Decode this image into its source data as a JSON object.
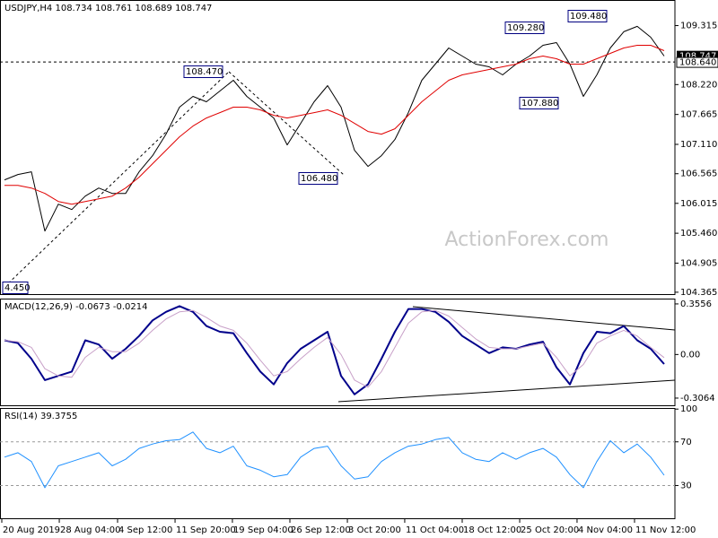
{
  "chart_data": [
    {
      "type": "line",
      "title": "USDJPY,H4  108.734 108.761 108.689 108.747",
      "ylim": [
        104.33,
        109.79
      ],
      "yticks": [
        109.315,
        {
          "value": 108.22,
          "label": "108.220"
        },
        107.665,
        {
          "value": 107.11,
          "label": "107.110"
        },
        106.565,
        106.015,
        {
          "value": 105.46,
          "label": "105.460"
        },
        104.905,
        104.365
      ],
      "xlim": [
        -0.333,
        49.8
      ],
      "xticks": [
        {
          "value": -0.2,
          "label": "20 Aug 2019"
        },
        {
          "value": 4.07,
          "label": "28 Aug 04:00"
        },
        {
          "value": 8.4,
          "label": "4 Sep 12:00"
        },
        {
          "value": 12.67,
          "label": "11 Sep 20:00"
        },
        {
          "value": 16.93,
          "label": "19 Sep 04:00"
        },
        {
          "value": 21.2,
          "label": "26 Sep 12:00"
        },
        {
          "value": 25.47,
          "label": "3 Oct 20:00"
        },
        {
          "value": 29.73,
          "label": "11 Oct 04:00"
        },
        {
          "value": 34,
          "label": "18 Oct 12:00"
        },
        {
          "value": 38.27,
          "label": "25 Oct 20:00"
        },
        {
          "value": 42.53,
          "label": "4 Nov 04:00"
        },
        {
          "value": 46.8,
          "label": "11 Nov 12:00"
        }
      ],
      "series": [
        {
          "name": "USDJPY",
          "color": "#000000",
          "width": 1,
          "values": [
            106.45,
            106.55,
            106.6,
            105.5,
            106.0,
            105.9,
            106.15,
            106.3,
            106.2,
            106.2,
            106.6,
            106.9,
            107.3,
            107.8,
            108.0,
            107.9,
            108.1,
            108.3,
            108.0,
            107.8,
            107.6,
            107.1,
            107.5,
            107.9,
            108.2,
            107.8,
            107.0,
            106.7,
            106.9,
            107.2,
            107.7,
            108.3,
            108.6,
            108.9,
            108.75,
            108.6,
            108.55,
            108.4,
            108.6,
            108.75,
            108.95,
            109.0,
            108.6,
            108.0,
            108.4,
            108.9,
            109.2,
            109.3,
            109.1,
            108.75
          ]
        },
        {
          "name": "MA",
          "color": "#e00000",
          "width": 1,
          "values": [
            106.35,
            106.35,
            106.3,
            106.2,
            106.05,
            106.0,
            106.05,
            106.1,
            106.15,
            106.3,
            106.5,
            106.75,
            107.0,
            107.25,
            107.45,
            107.6,
            107.7,
            107.8,
            107.8,
            107.75,
            107.65,
            107.6,
            107.65,
            107.7,
            107.75,
            107.65,
            107.5,
            107.35,
            107.3,
            107.4,
            107.65,
            107.9,
            108.1,
            108.3,
            108.4,
            108.45,
            108.5,
            108.55,
            108.6,
            108.7,
            108.75,
            108.7,
            108.6,
            108.6,
            108.7,
            108.8,
            108.9,
            108.95,
            108.95,
            108.85
          ]
        }
      ],
      "annotations": [
        "108.470",
        "106.480",
        "4.450",
        "109.280",
        "107.880",
        "109.480"
      ],
      "level": {
        "value": 108.64,
        "label": "108.640"
      },
      "last_price": 108.747,
      "watermark": "ActionForex.com"
    },
    {
      "type": "line",
      "title": "MACD(12,26,9) -0.0673 -0.0214",
      "ylim": [
        -0.357,
        0.393
      ],
      "yticks": [
        0.3556,
        {
          "value": 0,
          "label": "0.00"
        },
        -0.3064
      ],
      "xlim": [
        -0.333,
        49.8
      ],
      "series": [
        {
          "name": "MACD",
          "color": "#00008b",
          "width": 2,
          "values": [
            0.1,
            0.08,
            -0.03,
            -0.18,
            -0.15,
            -0.12,
            0.1,
            0.07,
            -0.03,
            0.04,
            0.13,
            0.24,
            0.3,
            0.34,
            0.3,
            0.2,
            0.16,
            0.15,
            0.01,
            -0.12,
            -0.21,
            -0.06,
            0.04,
            0.1,
            0.16,
            -0.15,
            -0.28,
            -0.21,
            -0.03,
            0.16,
            0.32,
            0.32,
            0.3,
            0.23,
            0.13,
            0.07,
            0.01,
            0.05,
            0.04,
            0.07,
            0.09,
            -0.09,
            -0.21,
            0.01,
            0.16,
            0.15,
            0.2,
            0.1,
            0.04,
            -0.0673
          ]
        },
        {
          "name": "Signal",
          "color": "#c8a0c8",
          "width": 1,
          "values": [
            0.1,
            0.09,
            0.05,
            -0.1,
            -0.15,
            -0.16,
            -0.02,
            0.05,
            0.02,
            0.02,
            0.08,
            0.17,
            0.25,
            0.3,
            0.31,
            0.26,
            0.2,
            0.17,
            0.08,
            -0.04,
            -0.15,
            -0.12,
            -0.03,
            0.05,
            0.12,
            0.0,
            -0.18,
            -0.23,
            -0.12,
            0.05,
            0.22,
            0.3,
            0.31,
            0.27,
            0.19,
            0.11,
            0.05,
            0.04,
            0.04,
            0.06,
            0.08,
            -0.02,
            -0.15,
            -0.07,
            0.08,
            0.13,
            0.17,
            0.13,
            0.05,
            -0.0214
          ]
        }
      ]
    },
    {
      "type": "line",
      "title": "RSI(14) 39.3755",
      "ylim": [
        0,
        101
      ],
      "yticks": [
        100,
        70,
        30
      ],
      "level_lines": [
        70,
        30
      ],
      "xlim": [
        -0.333,
        49.8
      ],
      "series": [
        {
          "name": "RSI",
          "color": "#1e90ff",
          "width": 1,
          "values": [
            56,
            60,
            52,
            28,
            48,
            52,
            56,
            60,
            48,
            54,
            64,
            68,
            71,
            72,
            79,
            64,
            60,
            66,
            48,
            44,
            38,
            40,
            56,
            64,
            66,
            48,
            36,
            38,
            52,
            60,
            66,
            68,
            72,
            74,
            60,
            54,
            52,
            60,
            54,
            60,
            64,
            56,
            40,
            28,
            52,
            71,
            60,
            68,
            56,
            39.3755
          ]
        }
      ]
    }
  ]
}
